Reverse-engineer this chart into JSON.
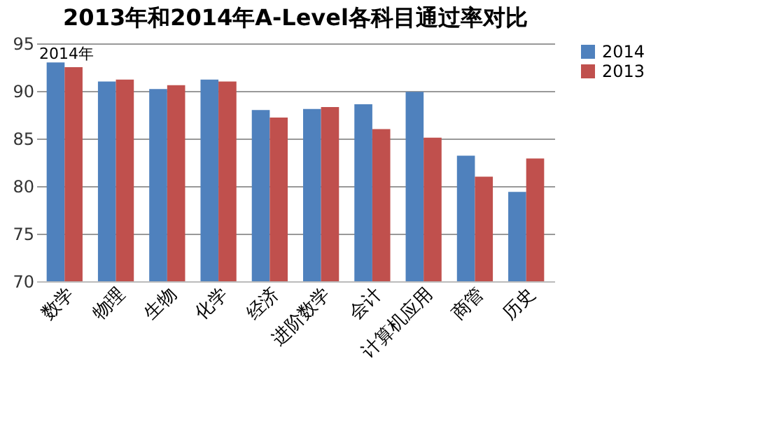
{
  "chart_data": {
    "type": "bar",
    "title": "2013年和2014年A-Level各科目通过率对比",
    "categories": [
      "数学",
      "物理",
      "生物",
      "化学",
      "经济",
      "进阶数学",
      "会计",
      "计算机应用",
      "商管",
      "历史"
    ],
    "series": [
      {
        "name": "2014",
        "color": "#4f81bd",
        "values": [
          93.0,
          91.0,
          90.2,
          91.2,
          88.0,
          88.1,
          88.6,
          89.9,
          83.2,
          79.4
        ]
      },
      {
        "name": "2013",
        "color": "#c0504d",
        "values": [
          92.5,
          91.2,
          90.6,
          91.0,
          87.2,
          88.3,
          86.0,
          85.1,
          81.0,
          82.9
        ]
      }
    ],
    "ylim": [
      70,
      95
    ],
    "yticks": [
      70,
      75,
      80,
      85,
      90,
      95
    ],
    "grid": "y",
    "legend": "right",
    "annotations": [
      "2014年"
    ]
  }
}
